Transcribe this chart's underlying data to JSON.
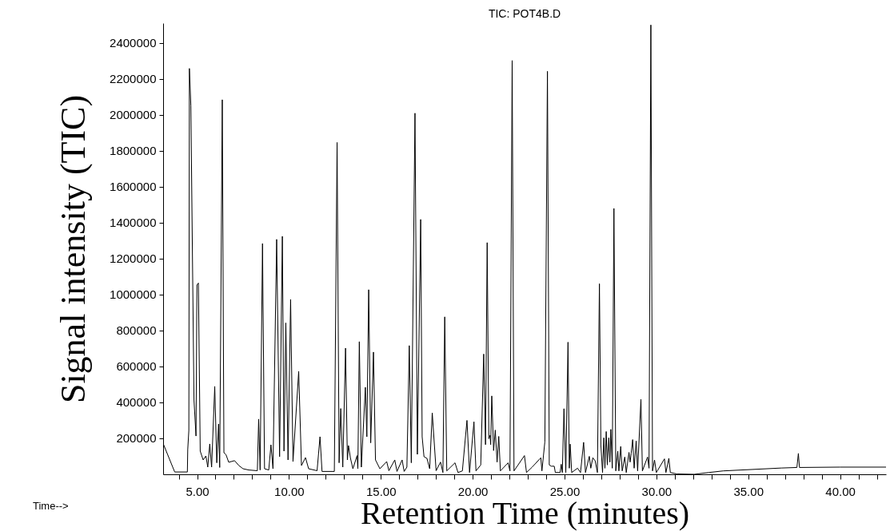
{
  "chart_data": {
    "type": "line",
    "title": "TIC: POT4B.D",
    "xlabel": "Retention Time (minutes)",
    "ylabel": "Signal intensity (TIC)",
    "annotations": [
      "Time-->"
    ],
    "color": "#000000",
    "grid": false,
    "line_style": "solid",
    "marker": "none",
    "xlim": [
      3.15,
      42.5
    ],
    "xticks": [
      {
        "value": 4,
        "label": null
      },
      {
        "value": 5,
        "label": "5.00"
      },
      {
        "value": 6,
        "label": null
      },
      {
        "value": 7,
        "label": null
      },
      {
        "value": 8,
        "label": null
      },
      {
        "value": 9,
        "label": null
      },
      {
        "value": 10,
        "label": "10.00"
      },
      {
        "value": 11,
        "label": null
      },
      {
        "value": 12,
        "label": null
      },
      {
        "value": 13,
        "label": null
      },
      {
        "value": 14,
        "label": null
      },
      {
        "value": 15,
        "label": "15.00"
      },
      {
        "value": 16,
        "label": null
      },
      {
        "value": 17,
        "label": null
      },
      {
        "value": 18,
        "label": null
      },
      {
        "value": 19,
        "label": null
      },
      {
        "value": 20,
        "label": "20.00"
      },
      {
        "value": 21,
        "label": null
      },
      {
        "value": 22,
        "label": null
      },
      {
        "value": 23,
        "label": null
      },
      {
        "value": 24,
        "label": null
      },
      {
        "value": 25,
        "label": "25.00"
      },
      {
        "value": 26,
        "label": null
      },
      {
        "value": 27,
        "label": null
      },
      {
        "value": 28,
        "label": null
      },
      {
        "value": 29,
        "label": null
      },
      {
        "value": 30,
        "label": "30.00"
      },
      {
        "value": 31,
        "label": null
      },
      {
        "value": 32,
        "label": null
      },
      {
        "value": 33,
        "label": null
      },
      {
        "value": 34,
        "label": null
      },
      {
        "value": 35,
        "label": "35.00"
      },
      {
        "value": 36,
        "label": null
      },
      {
        "value": 37,
        "label": null
      },
      {
        "value": 38,
        "label": null
      },
      {
        "value": 39,
        "label": null
      },
      {
        "value": 40,
        "label": "40.00"
      },
      {
        "value": 41,
        "label": null
      },
      {
        "value": 42,
        "label": null
      }
    ],
    "ylim": [
      0,
      2510000
    ],
    "yticks": [
      200000,
      400000,
      600000,
      800000,
      1000000,
      1200000,
      1400000,
      1600000,
      1800000,
      2000000,
      2200000,
      2400000
    ],
    "x": [
      3.16,
      3.78,
      4.47,
      4.49,
      4.55,
      4.58,
      4.66,
      4.83,
      4.94,
      4.99,
      5.07,
      5.17,
      5.33,
      5.48,
      5.58,
      5.69,
      5.79,
      5.96,
      6.07,
      6.17,
      6.23,
      6.37,
      6.46,
      6.57,
      6.72,
      7.04,
      7.27,
      7.5,
      7.81,
      8.28,
      8.35,
      8.43,
      8.56,
      8.67,
      8.9,
      9.02,
      9.13,
      9.33,
      9.49,
      9.64,
      9.73,
      9.83,
      9.95,
      10.09,
      10.22,
      10.53,
      10.68,
      10.9,
      11.07,
      11.53,
      11.69,
      11.8,
      12.47,
      12.62,
      12.73,
      12.82,
      12.93,
      13.08,
      13.18,
      13.24,
      13.35,
      13.48,
      13.71,
      13.75,
      13.83,
      13.94,
      14.16,
      14.24,
      14.34,
      14.45,
      14.6,
      14.71,
      14.95,
      15.32,
      15.44,
      15.76,
      15.88,
      16.16,
      16.27,
      16.42,
      16.55,
      16.66,
      16.86,
      16.99,
      17.17,
      17.25,
      17.35,
      17.51,
      17.66,
      17.8,
      18.01,
      18.25,
      18.38,
      18.48,
      18.59,
      19.04,
      19.2,
      19.44,
      19.69,
      19.83,
      20.07,
      20.18,
      20.44,
      20.6,
      20.7,
      20.79,
      20.88,
      20.95,
      20.98,
      21.04,
      21.14,
      21.23,
      21.33,
      21.42,
      21.51,
      21.93,
      22.03,
      22.15,
      22.25,
      22.82,
      22.93,
      23.22,
      23.71,
      23.77,
      23.93,
      24.07,
      24.17,
      24.28,
      24.44,
      24.5,
      24.76,
      24.82,
      24.88,
      24.97,
      25.07,
      25.19,
      25.26,
      25.31,
      25.39,
      25.71,
      25.87,
      26.04,
      26.14,
      26.35,
      26.43,
      26.54,
      26.67,
      26.79,
      26.9,
      26.98,
      27.07,
      27.14,
      27.2,
      27.27,
      27.33,
      27.41,
      27.47,
      27.52,
      27.6,
      27.69,
      27.79,
      27.9,
      27.96,
      28.06,
      28.14,
      28.28,
      28.36,
      28.51,
      28.57,
      28.63,
      28.71,
      28.79,
      28.9,
      28.98,
      29.16,
      29.24,
      29.52,
      29.6,
      29.7,
      29.79,
      29.9,
      30.0,
      30.44,
      30.52,
      30.68,
      30.76,
      31.11,
      32.06,
      32.85,
      33.64,
      35.23,
      36.81,
      37.65,
      37.73,
      37.79,
      40.0,
      42.5
    ],
    "values": [
      169000,
      13000,
      13000,
      138000,
      244000,
      2258000,
      2049000,
      413000,
      213000,
      1053000,
      1064000,
      129000,
      80000,
      102000,
      40000,
      169000,
      40000,
      489000,
      64000,
      280000,
      38000,
      2084000,
      120000,
      110000,
      67000,
      76000,
      49000,
      31000,
      24000,
      20000,
      307000,
      24000,
      1284000,
      31000,
      24000,
      164000,
      31000,
      1307000,
      98000,
      1324000,
      129000,
      842000,
      80000,
      973000,
      71000,
      573000,
      49000,
      93000,
      31000,
      20000,
      209000,
      16000,
      16000,
      1846000,
      64000,
      366000,
      40000,
      702000,
      80000,
      160000,
      89000,
      31000,
      104000,
      31000,
      738000,
      40000,
      484000,
      209000,
      1027000,
      175000,
      680000,
      80000,
      31000,
      71000,
      20000,
      80000,
      16000,
      80000,
      16000,
      40000,
      716000,
      64000,
      2009000,
      111000,
      1418000,
      209000,
      98000,
      89000,
      31000,
      342000,
      20000,
      68000,
      10000,
      876000,
      19000,
      64000,
      10000,
      19000,
      300000,
      10000,
      292000,
      19000,
      52000,
      669000,
      165000,
      1289000,
      198000,
      217000,
      165000,
      436000,
      132000,
      246000,
      68000,
      211000,
      19000,
      64000,
      19000,
      2302000,
      19000,
      104000,
      10000,
      38000,
      92000,
      19000,
      181000,
      2242000,
      52000,
      45000,
      45000,
      10000,
      10000,
      56000,
      10000,
      365000,
      10000,
      735000,
      34000,
      168000,
      10000,
      34000,
      10000,
      178000,
      10000,
      100000,
      34000,
      92000,
      75000,
      10000,
      1060000,
      160000,
      10000,
      203000,
      34000,
      238000,
      52000,
      203000,
      68000,
      250000,
      34000,
      1479000,
      19000,
      129000,
      19000,
      155000,
      19000,
      96000,
      10000,
      122000,
      68000,
      118000,
      193000,
      34000,
      185000,
      19000,
      417000,
      19000,
      96000,
      34000,
      2500000,
      19000,
      79000,
      10000,
      86000,
      10000,
      89000,
      10000,
      2000,
      0,
      10000,
      19000,
      27000,
      35000,
      38000,
      116000,
      38000,
      40000,
      40000
    ]
  }
}
